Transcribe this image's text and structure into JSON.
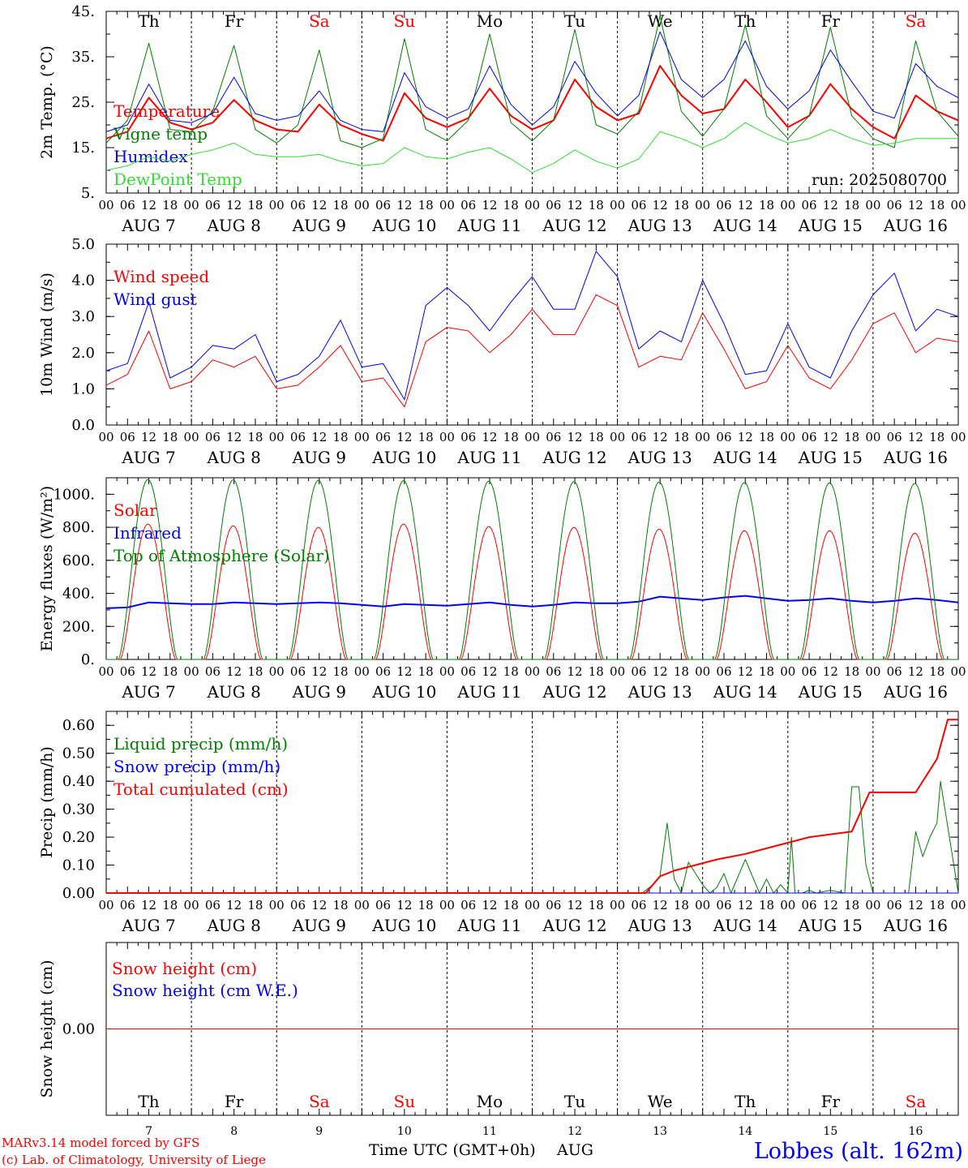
{
  "footer": {
    "model_line": "MARv3.14 model forced by GFS",
    "copyright_line": "(c) Lab. of Climatology, University of Liege",
    "xaxis_title": "Time UTC (GMT+0h)",
    "xaxis_month": "AUG",
    "location": "Lobbes (alt. 162m)"
  },
  "colors": {
    "red": "#ff0000",
    "green": "#007f00",
    "blue": "#0000ff",
    "light_green": "#33dd33"
  },
  "days": {
    "names": [
      "Th",
      "Fr",
      "Sa",
      "Su",
      "Mo",
      "Tu",
      "We",
      "Th",
      "Fr",
      "Sa"
    ],
    "weekend": [
      false,
      false,
      true,
      true,
      false,
      false,
      false,
      false,
      false,
      true
    ],
    "dates": [
      "AUG  7",
      "AUG  8",
      "AUG  9",
      "AUG 10",
      "AUG 11",
      "AUG 12",
      "AUG 13",
      "AUG 14",
      "AUG 15",
      "AUG 16"
    ],
    "numbers": [
      "7",
      "8",
      "9",
      "10",
      "11",
      "12",
      "13",
      "14",
      "15",
      "16"
    ],
    "hour_ticks": [
      "00",
      "06",
      "12",
      "18"
    ],
    "final_tick": "00"
  },
  "chart_data": [
    {
      "type": "line",
      "ylabel": "2m Temp. (°C)",
      "ylim": [
        5,
        45
      ],
      "yticks": [
        "45.",
        "35.",
        "25.",
        "15.",
        "5."
      ],
      "yticks_values": [
        45,
        35,
        25,
        15,
        5
      ],
      "annotation": "run: 2025080700",
      "show_day_names": true,
      "x_hours": [
        0,
        6,
        12,
        18,
        24,
        30,
        36,
        42,
        48,
        54,
        60,
        66,
        72,
        78,
        84,
        90,
        96,
        102,
        108,
        114,
        120,
        126,
        132,
        138,
        144,
        150,
        156,
        162,
        168,
        174,
        180,
        186,
        192,
        198,
        204,
        210,
        216,
        222,
        228,
        234,
        240
      ],
      "series": [
        {
          "name": "Temperature",
          "color": "red",
          "width": 2,
          "values": [
            17.0,
            18.5,
            26.0,
            20.5,
            19.0,
            20.5,
            25.5,
            21.0,
            19.0,
            18.5,
            24.5,
            20.0,
            18.0,
            16.5,
            27.0,
            21.5,
            19.5,
            21.5,
            28.0,
            22.0,
            19.0,
            21.0,
            30.0,
            24.0,
            21.0,
            22.5,
            33.0,
            26.5,
            22.5,
            23.5,
            30.0,
            25.0,
            19.5,
            22.0,
            29.0,
            23.5,
            19.5,
            17.0,
            26.5,
            23.0,
            21.0
          ]
        },
        {
          "name": "Vigne temp",
          "color": "green",
          "width": 1,
          "values": [
            16.0,
            21.0,
            38.0,
            19.0,
            18.5,
            23.0,
            37.5,
            19.0,
            16.0,
            20.0,
            36.5,
            16.5,
            15.0,
            17.0,
            39.0,
            19.0,
            16.5,
            21.0,
            40.0,
            20.5,
            16.5,
            21.0,
            41.0,
            20.0,
            18.0,
            23.0,
            44.0,
            23.0,
            17.5,
            23.5,
            42.0,
            22.0,
            17.0,
            22.0,
            41.5,
            22.0,
            17.0,
            15.0,
            38.5,
            23.0,
            17.5
          ]
        },
        {
          "name": "Humidex",
          "color": "blue",
          "width": 1,
          "values": [
            18.5,
            20.0,
            29.0,
            21.0,
            20.5,
            22.5,
            30.5,
            22.5,
            21.0,
            22.0,
            27.5,
            21.0,
            19.0,
            18.5,
            31.5,
            24.0,
            21.5,
            23.5,
            33.0,
            24.5,
            20.0,
            24.0,
            34.0,
            27.0,
            22.0,
            26.5,
            40.5,
            30.0,
            26.0,
            30.0,
            38.5,
            28.5,
            23.5,
            27.5,
            36.5,
            29.5,
            23.0,
            21.5,
            33.5,
            28.5,
            26.0
          ]
        },
        {
          "name": "DewPoint Temp",
          "color": "light_green",
          "width": 1,
          "values": [
            10.0,
            11.0,
            13.0,
            12.0,
            13.5,
            14.5,
            16.0,
            13.5,
            13.0,
            13.0,
            13.5,
            12.0,
            11.0,
            11.5,
            15.0,
            13.0,
            12.5,
            14.0,
            15.0,
            12.5,
            9.5,
            11.5,
            14.5,
            12.0,
            10.5,
            12.5,
            18.5,
            17.0,
            15.0,
            17.0,
            20.5,
            18.0,
            16.0,
            17.0,
            19.0,
            17.0,
            15.5,
            16.0,
            17.0,
            17.0,
            17.0
          ]
        }
      ]
    },
    {
      "type": "line",
      "ylabel": "10m Wind (m/s)",
      "ylim": [
        0,
        5
      ],
      "yticks": [
        "5.0",
        "4.0",
        "3.0",
        "2.0",
        "1.0",
        "0.0"
      ],
      "yticks_values": [
        5,
        4,
        3,
        2,
        1,
        0
      ],
      "show_day_names": false,
      "x_hours": [
        0,
        6,
        12,
        18,
        24,
        30,
        36,
        42,
        48,
        54,
        60,
        66,
        72,
        78,
        84,
        90,
        96,
        102,
        108,
        114,
        120,
        126,
        132,
        138,
        144,
        150,
        156,
        162,
        168,
        174,
        180,
        186,
        192,
        198,
        204,
        210,
        216,
        222,
        228,
        234,
        240
      ],
      "series": [
        {
          "name": "Wind speed",
          "color": "red",
          "width": 1,
          "values": [
            1.1,
            1.4,
            2.6,
            1.0,
            1.2,
            1.8,
            1.6,
            1.9,
            1.0,
            1.1,
            1.6,
            2.2,
            1.2,
            1.3,
            0.5,
            2.3,
            2.7,
            2.6,
            2.0,
            2.5,
            3.2,
            2.5,
            2.5,
            3.6,
            3.3,
            1.6,
            1.9,
            1.8,
            3.1,
            2.1,
            1.0,
            1.2,
            2.2,
            1.3,
            1.0,
            1.8,
            2.8,
            3.1,
            2.0,
            2.4,
            2.3
          ]
        },
        {
          "name": "Wind gust",
          "color": "blue",
          "width": 1,
          "values": [
            1.5,
            1.7,
            3.4,
            1.3,
            1.6,
            2.2,
            2.1,
            2.5,
            1.2,
            1.4,
            1.9,
            2.9,
            1.6,
            1.7,
            0.7,
            3.3,
            3.8,
            3.3,
            2.6,
            3.4,
            4.1,
            3.2,
            3.2,
            4.8,
            4.1,
            2.1,
            2.6,
            2.3,
            4.0,
            2.8,
            1.4,
            1.5,
            2.8,
            1.6,
            1.3,
            2.6,
            3.6,
            4.2,
            2.6,
            3.2,
            3.0
          ]
        }
      ]
    },
    {
      "type": "line",
      "ylabel": "Energy fluxes (W/m²)",
      "ylim": [
        0,
        1100
      ],
      "yticks": [
        "1000.",
        "800.",
        "600.",
        "400.",
        "200.",
        "0."
      ],
      "yticks_values": [
        1000,
        800,
        600,
        400,
        200,
        0
      ],
      "show_day_names": false,
      "diurnal_peaks": {
        "solar": [
          820,
          810,
          800,
          820,
          805,
          800,
          790,
          780,
          780,
          765
        ],
        "toa": [
          1090,
          1088,
          1085,
          1083,
          1080,
          1078,
          1075,
          1072,
          1070,
          1067
        ]
      },
      "series": [
        {
          "name": "Solar",
          "color": "red",
          "width": 1
        },
        {
          "name": "Infrared",
          "color": "blue",
          "width": 2,
          "x_hours": [
            0,
            6,
            12,
            18,
            24,
            30,
            36,
            42,
            48,
            54,
            60,
            66,
            72,
            78,
            84,
            90,
            96,
            102,
            108,
            114,
            120,
            126,
            132,
            138,
            144,
            150,
            156,
            162,
            168,
            174,
            180,
            186,
            192,
            198,
            204,
            210,
            216,
            222,
            228,
            234,
            240
          ],
          "values": [
            310,
            315,
            345,
            340,
            335,
            335,
            345,
            340,
            335,
            340,
            345,
            340,
            330,
            320,
            335,
            330,
            325,
            335,
            345,
            330,
            320,
            330,
            345,
            340,
            340,
            350,
            380,
            370,
            360,
            375,
            385,
            370,
            355,
            360,
            370,
            355,
            345,
            355,
            370,
            360,
            345
          ]
        },
        {
          "name": "Top of Atmosphere (Solar)",
          "color": "green",
          "width": 1
        }
      ]
    },
    {
      "type": "line",
      "ylabel": "Precip (mm/h)",
      "ylim": [
        0,
        0.65
      ],
      "yticks": [
        "0.60",
        "0.50",
        "0.40",
        "0.30",
        "0.20",
        "0.10",
        "0.00"
      ],
      "yticks_values": [
        0.6,
        0.5,
        0.4,
        0.3,
        0.2,
        0.1,
        0.0
      ],
      "show_day_names": false,
      "series": [
        {
          "name": "Liquid precip (mm/h)",
          "color": "green",
          "width": 1,
          "x_hours": [
            0,
            144,
            151,
            154,
            156,
            158,
            160,
            162,
            164,
            166,
            168,
            170,
            172,
            174,
            176,
            180,
            184,
            186,
            188,
            190,
            192,
            193,
            194,
            196,
            198,
            200,
            204,
            208,
            210,
            212,
            214,
            216,
            218,
            220,
            222,
            224,
            226,
            228,
            230,
            232,
            234,
            235,
            240
          ],
          "values": [
            0,
            0,
            0,
            0.03,
            0.06,
            0.25,
            0.05,
            0.0,
            0.11,
            0.07,
            0.03,
            0.0,
            0.02,
            0.07,
            0.0,
            0.12,
            0.0,
            0.05,
            0.0,
            0.03,
            0.0,
            0.2,
            0.0,
            0.0,
            0.01,
            0.0,
            0.01,
            0.0,
            0.38,
            0.38,
            0.1,
            0.0,
            0.0,
            0.0,
            0.0,
            0.0,
            0.0,
            0.22,
            0.13,
            0.2,
            0.25,
            0.4,
            0.0
          ]
        },
        {
          "name": "Snow precip (mm/h)",
          "color": "blue",
          "width": 1,
          "x_hours": [
            0,
            240
          ],
          "values": [
            0,
            0
          ]
        },
        {
          "name": "Total cumulated (cm)",
          "color": "red",
          "width": 2,
          "x_hours": [
            0,
            152,
            156,
            160,
            166,
            172,
            180,
            186,
            192,
            198,
            204,
            210,
            215,
            228,
            234,
            237,
            240
          ],
          "values": [
            0,
            0,
            0.06,
            0.08,
            0.1,
            0.12,
            0.14,
            0.16,
            0.18,
            0.2,
            0.21,
            0.22,
            0.36,
            0.36,
            0.48,
            0.62,
            0.62
          ]
        }
      ]
    },
    {
      "type": "line",
      "ylabel": "Snow height (cm)",
      "ylim": [
        -1,
        1
      ],
      "yticks": [
        "0.00"
      ],
      "yticks_values": [
        0
      ],
      "show_day_names": false,
      "bottom_day_names": true,
      "series": [
        {
          "name": "Snow height (cm)",
          "color": "red",
          "width": 1,
          "x_hours": [
            0,
            240
          ],
          "values": [
            0,
            0
          ]
        },
        {
          "name": "Snow height (cm W.E.)",
          "color": "blue",
          "width": 1
        }
      ]
    }
  ]
}
